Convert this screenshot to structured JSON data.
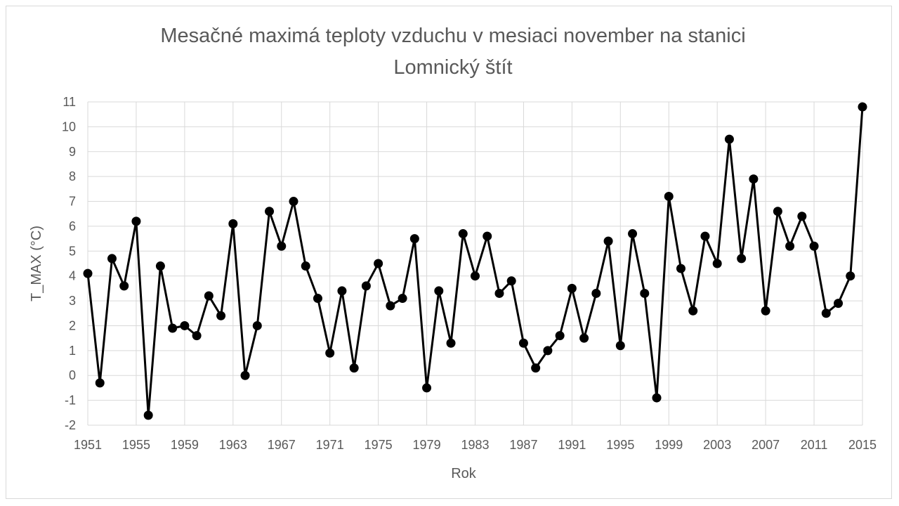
{
  "chart_data": {
    "type": "line",
    "title": "Mesačné maximá teploty vzduchu v mesiaci november na stanici Lomnický štít",
    "title_lines": [
      "Mesačné maximá teploty vzduchu v mesiaci november na stanici",
      "Lomnický štít"
    ],
    "xlabel": "Rok",
    "ylabel": "T_MAX (°C)",
    "ylim": [
      -2,
      11
    ],
    "xlim": [
      1951,
      2015
    ],
    "grid": true,
    "legend": "none",
    "x_tick_labels": [
      "1951",
      "1955",
      "1959",
      "1963",
      "1967",
      "1971",
      "1975",
      "1979",
      "1983",
      "1987",
      "1991",
      "1995",
      "1999",
      "2003",
      "2007",
      "2011",
      "2015"
    ],
    "y_tick_labels": [
      "11",
      "10",
      "9",
      "8",
      "7",
      "6",
      "5",
      "4",
      "3",
      "2",
      "1",
      "0",
      "-1",
      "-2"
    ],
    "x": [
      1951,
      1952,
      1953,
      1954,
      1955,
      1956,
      1957,
      1958,
      1959,
      1960,
      1961,
      1962,
      1963,
      1964,
      1965,
      1966,
      1967,
      1968,
      1969,
      1970,
      1971,
      1972,
      1973,
      1974,
      1975,
      1976,
      1977,
      1978,
      1979,
      1980,
      1981,
      1982,
      1983,
      1984,
      1985,
      1986,
      1987,
      1988,
      1989,
      1990,
      1991,
      1992,
      1993,
      1994,
      1995,
      1996,
      1997,
      1998,
      1999,
      2000,
      2001,
      2002,
      2003,
      2004,
      2005,
      2006,
      2007,
      2008,
      2009,
      2010,
      2011,
      2012,
      2013,
      2014,
      2015
    ],
    "y": [
      4.1,
      -0.3,
      4.7,
      3.6,
      6.2,
      -1.6,
      4.4,
      1.9,
      2.0,
      1.6,
      3.2,
      2.4,
      6.1,
      0.0,
      2.0,
      6.6,
      5.2,
      7.0,
      4.4,
      3.1,
      0.9,
      3.4,
      0.3,
      3.6,
      4.5,
      2.8,
      3.1,
      5.5,
      -0.5,
      3.4,
      1.3,
      5.7,
      4.0,
      5.6,
      3.3,
      3.8,
      1.3,
      0.3,
      1.0,
      1.6,
      3.5,
      1.5,
      3.3,
      5.4,
      1.2,
      5.7,
      3.3,
      -0.9,
      7.2,
      4.3,
      2.6,
      5.6,
      4.5,
      9.5,
      4.7,
      7.9,
      2.6,
      6.6,
      5.2,
      6.4,
      5.2,
      2.5,
      2.9,
      4.0,
      10.8
    ],
    "colors": {
      "line": "#000000",
      "marker": "#000000",
      "grid": "#d9d9d9",
      "text": "#595959"
    }
  }
}
